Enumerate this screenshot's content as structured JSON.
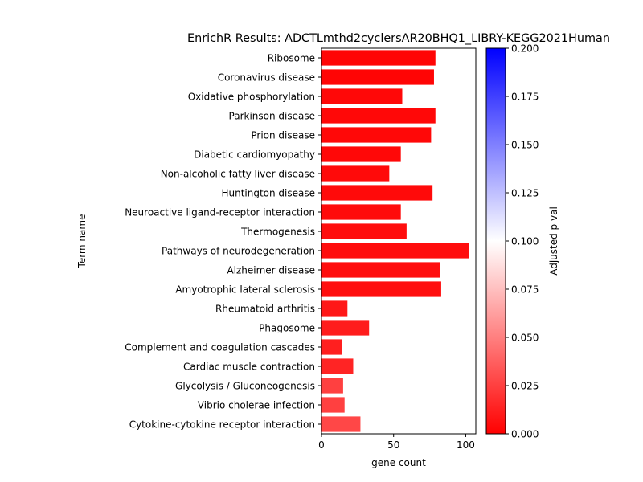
{
  "chart_data": {
    "type": "bar",
    "orientation": "horizontal",
    "title": "EnrichR Results: ADCTLmthd2cyclersAR20BHQ1_LIBRY-KEGG2021Human",
    "xlabel": "gene count",
    "ylabel": "Term name",
    "xlim": [
      0,
      107
    ],
    "xticks": [
      0,
      50,
      100
    ],
    "grid": false,
    "legend": "none",
    "categories": [
      "Ribosome",
      "Coronavirus disease",
      "Oxidative phosphorylation",
      "Parkinson disease",
      "Prion disease",
      "Diabetic cardiomyopathy",
      "Non-alcoholic fatty liver disease",
      "Huntington disease",
      "Neuroactive ligand-receptor interaction",
      "Thermogenesis",
      "Pathways of neurodegeneration",
      "Alzheimer disease",
      "Amyotrophic lateral sclerosis",
      "Rheumatoid arthritis",
      "Phagosome",
      "Complement and coagulation cascades",
      "Cardiac muscle contraction",
      "Glycolysis / Gluconeogenesis",
      "Vibrio cholerae infection",
      "Cytokine-cytokine receptor interaction"
    ],
    "values": [
      79,
      78,
      56,
      79,
      76,
      55,
      47,
      77,
      55,
      59,
      102,
      82,
      83,
      18,
      33,
      14,
      22,
      15,
      16,
      27
    ],
    "color_values": [
      0.002,
      0.002,
      0.003,
      0.003,
      0.003,
      0.003,
      0.004,
      0.004,
      0.004,
      0.005,
      0.005,
      0.005,
      0.006,
      0.009,
      0.011,
      0.012,
      0.014,
      0.025,
      0.025,
      0.028
    ],
    "colorbar": {
      "label": "Adjusted p val",
      "range": [
        0,
        0.2
      ],
      "ticks": [
        "0.000",
        "0.025",
        "0.050",
        "0.075",
        "0.100",
        "0.125",
        "0.150",
        "0.175",
        "0.200"
      ],
      "colors": [
        "#ff0000",
        "#ffffff",
        "#0000ff"
      ]
    }
  }
}
